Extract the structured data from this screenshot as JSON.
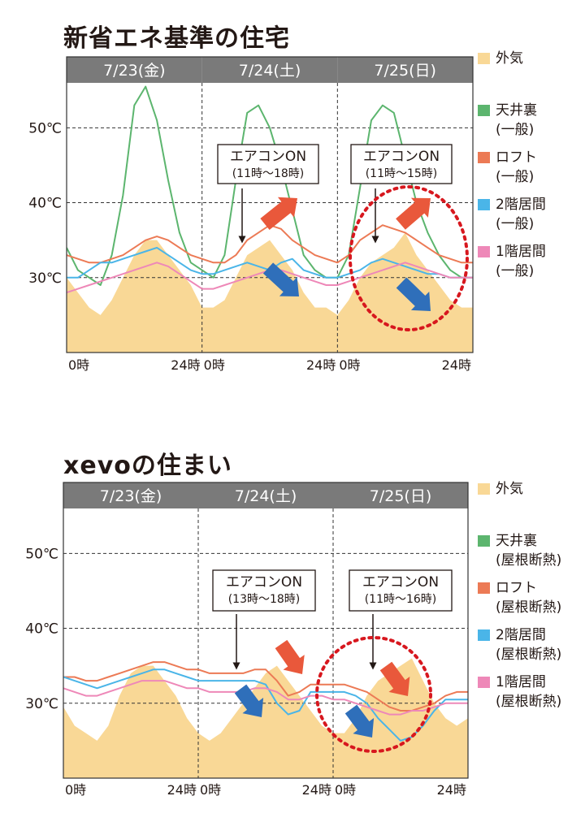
{
  "charts_header": {
    "title_top": "新省エネ基準の住宅",
    "title_bottom": "xevoの住まい"
  },
  "colors": {
    "outdoor": "#f9d896",
    "attic": "#5cb56e",
    "loft": "#ec7a55",
    "floor2": "#4ab5e8",
    "floor1": "#ee88b8",
    "header_bg": "#7a7a7a",
    "arrow_red": "#e9583b",
    "arrow_blue": "#2f6fba",
    "circle": "#d7171e"
  },
  "chart_data": [
    {
      "type": "area",
      "title": "新省エネ基準の住宅",
      "day_labels": [
        "7/23(金)",
        "7/24(土)",
        "7/25(日)"
      ],
      "x_tick_labels": [
        "0時",
        "24時",
        "0時",
        "24時",
        "0時",
        "24時"
      ],
      "y_tick_labels": [
        "50℃",
        "40℃",
        "30℃"
      ],
      "y_ticks": [
        50,
        40,
        30
      ],
      "xlim": [
        0,
        72
      ],
      "ylim": [
        20,
        56
      ],
      "grid": "dashed at 30/40/50℃ and day boundaries",
      "legend_placement": "right",
      "legend": [
        {
          "key": "outdoor",
          "label": "外気",
          "sub": ""
        },
        {
          "key": "attic",
          "label": "天井裏",
          "sub": "(一般)"
        },
        {
          "key": "loft",
          "label": "ロフト",
          "sub": "(一般)"
        },
        {
          "key": "floor2",
          "label": "2階居間",
          "sub": "(一般)"
        },
        {
          "key": "floor1",
          "label": "1階居間",
          "sub": "(一般)"
        }
      ],
      "annotations": [
        {
          "label": "エアコンON",
          "sub": "(11時〜18時)",
          "day": 2
        },
        {
          "label": "エアコンON",
          "sub": "(11時〜15時)",
          "day": 3
        }
      ],
      "x": [
        0,
        2,
        4,
        6,
        8,
        10,
        12,
        14,
        16,
        18,
        20,
        22,
        24,
        26,
        28,
        30,
        32,
        34,
        36,
        38,
        40,
        42,
        44,
        46,
        48,
        50,
        52,
        54,
        56,
        58,
        60,
        62,
        64,
        66,
        68,
        70,
        72
      ],
      "series": [
        {
          "key": "outdoor",
          "values": [
            30,
            28,
            26,
            25,
            27,
            30,
            33,
            35,
            35,
            33,
            31,
            29,
            26,
            26,
            27,
            30,
            33,
            34,
            35,
            33,
            31,
            28,
            26,
            26,
            25,
            27,
            30,
            32,
            33,
            34,
            36,
            33,
            31,
            29,
            27,
            26,
            26
          ]
        },
        {
          "key": "attic",
          "values": [
            34,
            31,
            30,
            29,
            33,
            41,
            53,
            55.5,
            51,
            43,
            36,
            32,
            31,
            30,
            33,
            43,
            52,
            53,
            50,
            45,
            39,
            33,
            31,
            30,
            30,
            33,
            42,
            51,
            53,
            52,
            46,
            40,
            36,
            33,
            31,
            30,
            30
          ]
        },
        {
          "key": "loft",
          "values": [
            33,
            32.5,
            32,
            32,
            32.5,
            33,
            34,
            35,
            35.5,
            35,
            34,
            33,
            32.5,
            32,
            32,
            33,
            35,
            36,
            37,
            36.5,
            35,
            34,
            33,
            32.5,
            32,
            33,
            35,
            36,
            37,
            36.5,
            36,
            35,
            34,
            33,
            32.5,
            32,
            32
          ]
        },
        {
          "key": "floor2",
          "values": [
            30,
            30,
            31,
            32,
            32,
            32.5,
            33,
            33.5,
            34,
            33,
            32,
            31,
            30.5,
            30.5,
            31,
            31.5,
            32,
            31.5,
            31,
            32,
            32.5,
            31,
            30.5,
            30,
            30,
            30.5,
            31,
            32,
            32.5,
            32,
            31.5,
            31,
            30.5,
            30.5,
            30,
            30,
            30
          ]
        },
        {
          "key": "floor1",
          "values": [
            28,
            28.5,
            29,
            29.5,
            30,
            30.5,
            31,
            31.5,
            32,
            31.5,
            30.5,
            29.5,
            28.5,
            28.5,
            29,
            29.5,
            30,
            30.5,
            31,
            31,
            30.5,
            30,
            29.5,
            29,
            29,
            29.5,
            30,
            30.5,
            31,
            31.5,
            32,
            31.5,
            31,
            30.5,
            30,
            30,
            30
          ]
        }
      ]
    },
    {
      "type": "area",
      "title": "xevoの住まい",
      "day_labels": [
        "7/23(金)",
        "7/24(土)",
        "7/25(日)"
      ],
      "x_tick_labels": [
        "0時",
        "24時",
        "0時",
        "24時",
        "0時",
        "24時"
      ],
      "y_tick_labels": [
        "50℃",
        "40℃",
        "30℃"
      ],
      "y_ticks": [
        50,
        40,
        30
      ],
      "xlim": [
        0,
        72
      ],
      "ylim": [
        20,
        56
      ],
      "grid": "dashed at 30/40/50℃ and day boundaries",
      "legend_placement": "right",
      "legend": [
        {
          "key": "outdoor",
          "label": "外気",
          "sub": ""
        },
        {
          "key": "attic",
          "label": "天井裏",
          "sub": "(屋根断熱)"
        },
        {
          "key": "loft",
          "label": "ロフト",
          "sub": "(屋根断熱)"
        },
        {
          "key": "floor2",
          "label": "2階居間",
          "sub": "(屋根断熱)"
        },
        {
          "key": "floor1",
          "label": "1階居間",
          "sub": "(屋根断熱)"
        }
      ],
      "annotations": [
        {
          "label": "エアコンON",
          "sub": "(13時〜18時)",
          "day": 2
        },
        {
          "label": "エアコンON",
          "sub": "(11時〜16時)",
          "day": 3
        }
      ],
      "x": [
        0,
        2,
        4,
        6,
        8,
        10,
        12,
        14,
        16,
        18,
        20,
        22,
        24,
        26,
        28,
        30,
        32,
        34,
        36,
        38,
        40,
        42,
        44,
        46,
        48,
        50,
        52,
        54,
        56,
        58,
        60,
        62,
        64,
        66,
        68,
        70,
        72
      ],
      "series": [
        {
          "key": "outdoor",
          "values": [
            29.5,
            27,
            26,
            25,
            27,
            31,
            34,
            35,
            35,
            33,
            31,
            28,
            26,
            25,
            26,
            28,
            30,
            32,
            34,
            35,
            33,
            31,
            29,
            27,
            26,
            26,
            28,
            31,
            33,
            34,
            35,
            36,
            33,
            30,
            28,
            27,
            28
          ]
        },
        {
          "key": "loft",
          "values": [
            33.5,
            33.5,
            33,
            33,
            33.5,
            34,
            34.5,
            35,
            35.5,
            35.5,
            35,
            34.5,
            34.5,
            34,
            34,
            34,
            34,
            34.5,
            34.5,
            33,
            31,
            31.5,
            32.5,
            32.5,
            32.5,
            32.5,
            32,
            31.5,
            30.5,
            29.5,
            29,
            29,
            29.5,
            30,
            31,
            31.5,
            31.5
          ]
        },
        {
          "key": "floor2",
          "values": [
            33.5,
            33,
            32.5,
            32,
            32.5,
            33,
            33.5,
            34,
            34.5,
            34.5,
            34,
            33.5,
            33,
            33,
            33,
            33,
            33,
            33,
            32.5,
            30,
            28.5,
            29,
            31.5,
            31.5,
            31.5,
            31.5,
            31,
            30,
            28,
            26.5,
            25,
            25.5,
            27,
            29,
            30.5,
            30.5,
            30.5
          ]
        },
        {
          "key": "floor1",
          "values": [
            32,
            31.5,
            31,
            31,
            31.5,
            32,
            32.5,
            33,
            33,
            33,
            32.5,
            32,
            32,
            31.5,
            31.5,
            31.5,
            31.5,
            32,
            32,
            31.5,
            30.5,
            30.5,
            31,
            31,
            30.5,
            30.5,
            30,
            29.5,
            29,
            28.5,
            28.5,
            29,
            29,
            29.5,
            30,
            30,
            30
          ]
        }
      ]
    }
  ]
}
